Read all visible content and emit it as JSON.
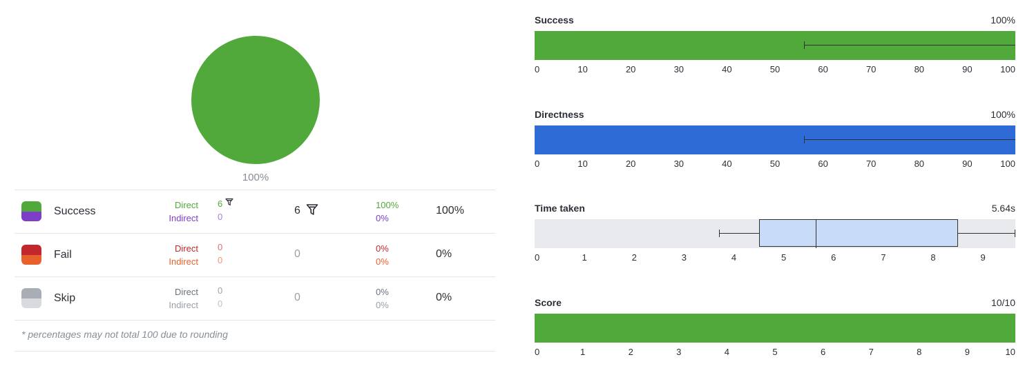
{
  "pie": {
    "label": "100%",
    "slices": [
      {
        "name": "success",
        "value": 100,
        "color": "#52a93b"
      }
    ]
  },
  "table": {
    "rows": [
      {
        "label": "Success",
        "top_color": "#52a93b",
        "bottom_color": "#7d3fc8",
        "direct_label": "Direct",
        "indirect_label": "Indirect",
        "direct_color": "#52a93b",
        "indirect_color": "#7d3fc8",
        "direct_count": "6",
        "indirect_count": "0",
        "total": "6",
        "direct_pct": "100%",
        "indirect_pct": "0%",
        "total_pct": "100%",
        "filter_icon": "filter-icon"
      },
      {
        "label": "Fail",
        "top_color": "#c1272d",
        "bottom_color": "#e8612c",
        "direct_label": "Direct",
        "indirect_label": "Indirect",
        "direct_color": "#c1272d",
        "indirect_color": "#e8612c",
        "direct_count": "0",
        "indirect_count": "0",
        "total": "0",
        "direct_pct": "0%",
        "indirect_pct": "0%",
        "total_pct": "0%"
      },
      {
        "label": "Skip",
        "top_color": "#a9aeb6",
        "bottom_color": "#d8dade",
        "direct_label": "Direct",
        "indirect_label": "Indirect",
        "direct_color": "#6b727c",
        "indirect_color": "#9aa0a8",
        "direct_count": "0",
        "indirect_count": "0",
        "total": "0",
        "direct_pct": "0%",
        "indirect_pct": "0%",
        "total_pct": "0%"
      }
    ],
    "footnote": "* percentages may not total 100 due to rounding"
  },
  "metrics": {
    "success": {
      "title": "Success",
      "value": "100%",
      "bar_value": 100,
      "ci_low": 56,
      "ci_high": 100,
      "axis_max": 100,
      "color": "#52a93b",
      "ticks": [
        "0",
        "10",
        "20",
        "30",
        "40",
        "50",
        "60",
        "70",
        "80",
        "90",
        "100"
      ]
    },
    "directness": {
      "title": "Directness",
      "value": "100%",
      "bar_value": 100,
      "ci_low": 56,
      "ci_high": 100,
      "axis_max": 100,
      "color": "#2f6bd6",
      "ticks": [
        "0",
        "10",
        "20",
        "30",
        "40",
        "50",
        "60",
        "70",
        "80",
        "90",
        "100"
      ]
    },
    "time_taken": {
      "title": "Time taken",
      "value": "5.64s",
      "axis_max": 9.65,
      "whisker_low": 3.7,
      "q1": 4.5,
      "median": 5.64,
      "q3": 8.5,
      "whisker_high": 9.65,
      "box_color": "#c8dcf8",
      "ticks": [
        "0",
        "1",
        "2",
        "3",
        "4",
        "5",
        "6",
        "7",
        "8",
        "9"
      ]
    },
    "score": {
      "title": "Score",
      "value": "10/10",
      "bar_value": 10,
      "axis_max": 10,
      "color": "#52a93b",
      "ticks": [
        "0",
        "1",
        "2",
        "3",
        "4",
        "5",
        "6",
        "7",
        "8",
        "9",
        "10"
      ]
    }
  }
}
